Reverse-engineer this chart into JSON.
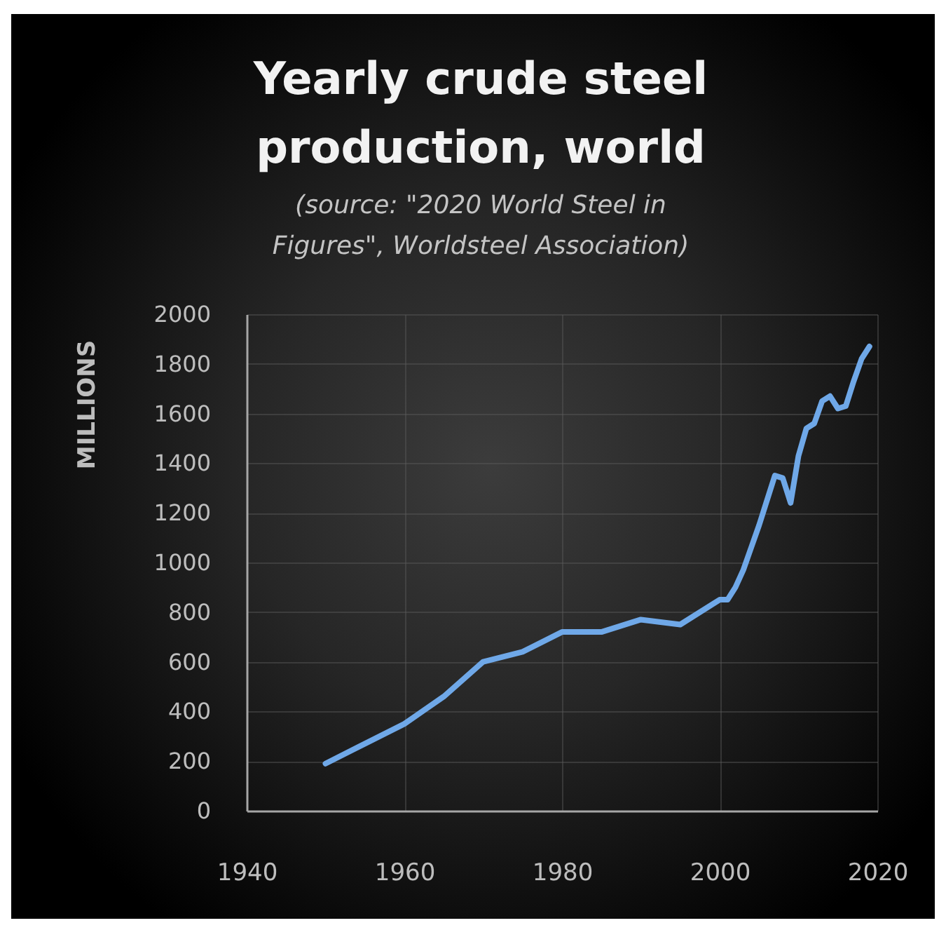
{
  "chart_data": {
    "type": "line",
    "title": "Yearly crude steel production, world",
    "subtitle": "(source: \"2020 World Steel in Figures\", Worldsteel Association)",
    "ylabel": "MILLIONS",
    "x": [
      1950,
      1955,
      1960,
      1965,
      1970,
      1975,
      1980,
      1985,
      1990,
      1995,
      2000,
      2001,
      2002,
      2003,
      2004,
      2005,
      2006,
      2007,
      2008,
      2009,
      2010,
      2011,
      2012,
      2013,
      2014,
      2015,
      2016,
      2017,
      2018,
      2019
    ],
    "values": [
      190,
      270,
      350,
      460,
      600,
      640,
      720,
      720,
      770,
      750,
      850,
      850,
      900,
      970,
      1060,
      1150,
      1250,
      1350,
      1340,
      1240,
      1430,
      1540,
      1560,
      1650,
      1670,
      1620,
      1630,
      1730,
      1820,
      1870
    ],
    "color": "#6fa8e8",
    "xlim": [
      1940,
      2020
    ],
    "xticks": [
      1940,
      1960,
      1980,
      2000,
      2020
    ],
    "ylim": [
      0,
      2000
    ],
    "yticks": [
      0,
      200,
      400,
      600,
      800,
      1000,
      1200,
      1400,
      1600,
      1800,
      2000
    ],
    "grid": true
  }
}
